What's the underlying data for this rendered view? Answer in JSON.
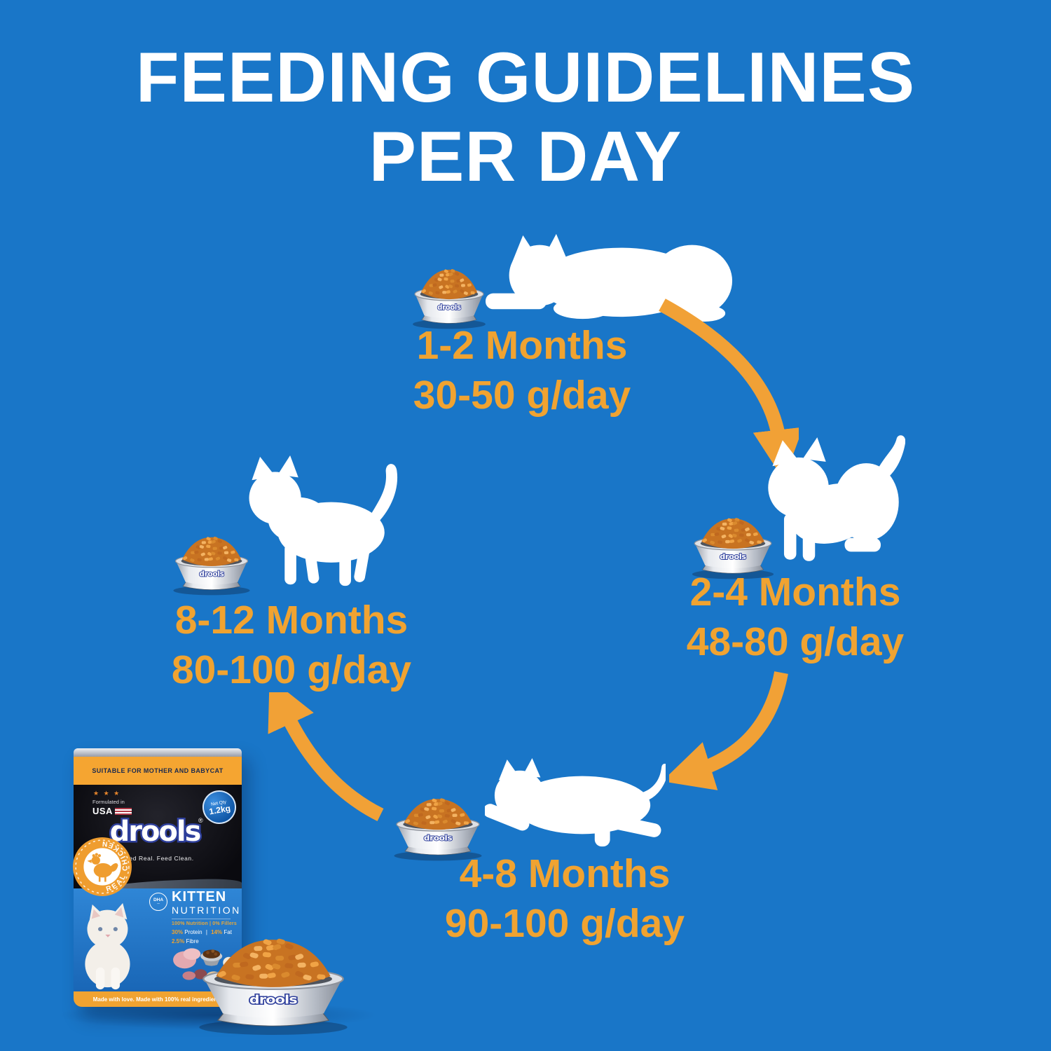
{
  "title": {
    "line1": "FEEDING GUIDELINES",
    "line2": "PER DAY"
  },
  "stages": [
    {
      "months": "1-2 Months",
      "amount": "30-50 g/day"
    },
    {
      "months": "2-4 Months",
      "amount": "48-80 g/day"
    },
    {
      "months": "4-8 Months",
      "amount": "90-100 g/day"
    },
    {
      "months": "8-12 Months",
      "amount": "80-100 g/day"
    }
  ],
  "bowl": {
    "brand": "drools"
  },
  "package": {
    "header_band": "SUITABLE FOR MOTHER AND BABYCAT",
    "stars": "★ ★ ★",
    "formulated_line1": "Formulated in",
    "formulated_line2": "USA",
    "net_qty_label": "Net Qty",
    "net_qty_value": "1.2kg",
    "brand": "drools",
    "brand_reg": "®",
    "tagline": "Feed Real. Feed Clean.",
    "side_badge": "REAL CHICKEN",
    "dha_badge": "DHA",
    "product_line1": "KITTEN",
    "product_line2": "NUTRITION",
    "claim": "100% Nutrition | 0% Fillers",
    "macros": [
      {
        "value": "30%",
        "label": "Protein"
      },
      {
        "value": "14%",
        "label": "Fat"
      },
      {
        "value": "2.5%",
        "label": "Fibre"
      }
    ],
    "macro_separator": "|",
    "bottom_band": "Made with love. Made with 100% real ingredients"
  },
  "colors": {
    "background": "#1976C8",
    "accent_orange": "#F0A331",
    "arrow_orange": "#F1A136",
    "white": "#FFFFFF",
    "package_band": "#F5A531",
    "logo_blue": "#2E3F9C"
  }
}
